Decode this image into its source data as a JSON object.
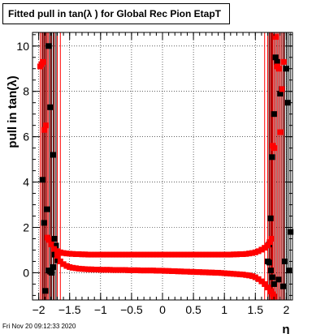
{
  "title": "Fitted pull in tan(λ ) for Global Rec Pion EtapT",
  "timestamp": "Fri Nov 20 09:12:33 2020",
  "colors": {
    "series_a": "#000000",
    "series_b": "#ff0000",
    "grid": "#000000"
  },
  "chart_data": {
    "type": "scatter",
    "title": "Fitted pull in tan(λ ) for Global Rec Pion EtapT",
    "xlabel": "η",
    "ylabel": "pull in tan(λ)",
    "xlim": [
      -2.1,
      2.1
    ],
    "ylim": [
      -1.2,
      10.6
    ],
    "x_ticks": [
      -2,
      -1.5,
      -1,
      -0.5,
      0,
      0.5,
      1,
      1.5,
      2
    ],
    "x_tick_labels": [
      "−2",
      "−1.5",
      "−1",
      "−0.5",
      "0",
      "0.5",
      "1",
      "1.5",
      "2"
    ],
    "y_ticks": [
      0,
      2,
      4,
      6,
      8,
      10
    ],
    "y_tick_labels": [
      "0",
      "2",
      "4",
      "6",
      "8",
      "10"
    ],
    "grid": true,
    "series": [
      {
        "marker": "square",
        "mean": [
          [
            -1.94,
            4.1
          ],
          [
            -1.915,
            2.2
          ],
          [
            -1.89,
            -0.8
          ],
          [
            -1.865,
            2.8
          ],
          [
            -1.84,
            10.0
          ],
          [
            -1.815,
            7.3
          ],
          [
            -1.79,
            0.1
          ],
          [
            -1.765,
            5.2
          ],
          [
            -1.745,
            1.5
          ],
          [
            -1.72,
            1.2
          ],
          [
            1.72,
            1.25
          ],
          [
            1.745,
            2.4
          ],
          [
            1.77,
            5.1
          ],
          [
            1.8,
            7.0
          ],
          [
            1.825,
            9.5
          ],
          [
            1.85,
            9.3
          ],
          [
            1.875,
            -0.3
          ],
          [
            1.9,
            7.9
          ],
          [
            1.925,
            8.1
          ],
          [
            1.95,
            -0.6
          ],
          [
            1.975,
            0.5
          ],
          [
            2.0,
            9.0
          ],
          [
            2.02,
            7.5
          ],
          [
            2.045,
            0.1
          ],
          [
            2.07,
            1.8
          ]
        ],
        "zero": [
          [
            -1.84,
            0.1
          ],
          [
            -1.815,
            0.05
          ],
          [
            -1.79,
            0.0
          ],
          [
            -1.765,
            0.25
          ],
          [
            -1.745,
            0.8
          ],
          [
            -1.72,
            0.9
          ],
          [
            -1.7,
            0.55
          ],
          [
            1.7,
            0.5
          ],
          [
            1.725,
            0.45
          ],
          [
            1.75,
            0.1
          ],
          [
            1.775,
            -0.2
          ],
          [
            1.8,
            -0.5
          ]
        ]
      },
      {
        "marker": "square",
        "mean": [
          [
            -1.975,
            9.1
          ],
          [
            -1.955,
            9.2
          ],
          [
            -1.93,
            9.3
          ],
          [
            -1.905,
            6.3
          ],
          [
            -1.88,
            6.5
          ],
          [
            -1.86,
            1.55
          ],
          [
            -1.84,
            1.45
          ],
          [
            -1.8,
            1.25
          ],
          [
            -1.75,
            1.05
          ],
          [
            -1.7,
            0.95
          ],
          [
            -1.65,
            0.9
          ],
          [
            -1.6,
            0.87
          ],
          [
            -1.55,
            0.85
          ],
          [
            -1.5,
            0.84
          ],
          [
            -1.45,
            0.83
          ],
          [
            -1.4,
            0.82
          ],
          [
            -1.35,
            0.82
          ],
          [
            -1.3,
            0.81
          ],
          [
            -1.25,
            0.81
          ],
          [
            -1.2,
            0.8
          ],
          [
            -1.15,
            0.8
          ],
          [
            -1.1,
            0.8
          ],
          [
            -1.05,
            0.8
          ],
          [
            -1.0,
            0.8
          ],
          [
            -0.95,
            0.8
          ],
          [
            -0.9,
            0.8
          ],
          [
            -0.85,
            0.8
          ],
          [
            -0.8,
            0.8
          ],
          [
            -0.75,
            0.8
          ],
          [
            -0.7,
            0.8
          ],
          [
            -0.65,
            0.8
          ],
          [
            -0.6,
            0.8
          ],
          [
            -0.55,
            0.8
          ],
          [
            -0.5,
            0.8
          ],
          [
            -0.45,
            0.8
          ],
          [
            -0.4,
            0.8
          ],
          [
            -0.35,
            0.8
          ],
          [
            -0.3,
            0.8
          ],
          [
            -0.25,
            0.8
          ],
          [
            -0.2,
            0.8
          ],
          [
            -0.15,
            0.8
          ],
          [
            -0.1,
            0.8
          ],
          [
            -0.05,
            0.8
          ],
          [
            0.0,
            0.8
          ],
          [
            0.05,
            0.8
          ],
          [
            0.1,
            0.8
          ],
          [
            0.15,
            0.8
          ],
          [
            0.2,
            0.8
          ],
          [
            0.25,
            0.8
          ],
          [
            0.3,
            0.8
          ],
          [
            0.35,
            0.8
          ],
          [
            0.4,
            0.8
          ],
          [
            0.45,
            0.8
          ],
          [
            0.5,
            0.8
          ],
          [
            0.55,
            0.8
          ],
          [
            0.6,
            0.8
          ],
          [
            0.65,
            0.8
          ],
          [
            0.7,
            0.8
          ],
          [
            0.75,
            0.8
          ],
          [
            0.8,
            0.8
          ],
          [
            0.85,
            0.8
          ],
          [
            0.9,
            0.8
          ],
          [
            0.95,
            0.8
          ],
          [
            1.0,
            0.8
          ],
          [
            1.05,
            0.8
          ],
          [
            1.1,
            0.8
          ],
          [
            1.15,
            0.81
          ],
          [
            1.2,
            0.81
          ],
          [
            1.25,
            0.82
          ],
          [
            1.3,
            0.82
          ],
          [
            1.35,
            0.83
          ],
          [
            1.4,
            0.85
          ],
          [
            1.45,
            0.87
          ],
          [
            1.5,
            0.9
          ],
          [
            1.55,
            0.95
          ],
          [
            1.6,
            1.02
          ],
          [
            1.65,
            1.1
          ],
          [
            1.7,
            1.2
          ],
          [
            1.73,
            1.35
          ],
          [
            1.76,
            1.5
          ],
          [
            1.78,
            5.6
          ],
          [
            1.805,
            5.5
          ],
          [
            1.83,
            10.4
          ],
          [
            1.855,
            9.1
          ],
          [
            1.88,
            9.0
          ],
          [
            1.905,
            6.2
          ],
          [
            1.93,
            8.1
          ],
          [
            1.96,
            9.3
          ]
        ],
        "zero": [
          [
            -1.7,
            0.75
          ],
          [
            -1.65,
            0.5
          ],
          [
            -1.6,
            0.38
          ],
          [
            -1.55,
            0.3
          ],
          [
            -1.5,
            0.25
          ],
          [
            -1.45,
            0.22
          ],
          [
            -1.4,
            0.2
          ],
          [
            -1.35,
            0.18
          ],
          [
            -1.3,
            0.17
          ],
          [
            -1.25,
            0.16
          ],
          [
            -1.2,
            0.15
          ],
          [
            -1.15,
            0.15
          ],
          [
            -1.1,
            0.14
          ],
          [
            -1.05,
            0.14
          ],
          [
            -1.0,
            0.13
          ],
          [
            -0.95,
            0.13
          ],
          [
            -0.9,
            0.13
          ],
          [
            -0.85,
            0.13
          ],
          [
            -0.8,
            0.12
          ],
          [
            -0.75,
            0.12
          ],
          [
            -0.7,
            0.12
          ],
          [
            -0.65,
            0.12
          ],
          [
            -0.6,
            0.12
          ],
          [
            -0.55,
            0.11
          ],
          [
            -0.5,
            0.11
          ],
          [
            -0.45,
            0.11
          ],
          [
            -0.4,
            0.11
          ],
          [
            -0.35,
            0.1
          ],
          [
            -0.3,
            0.1
          ],
          [
            -0.25,
            0.1
          ],
          [
            -0.2,
            0.1
          ],
          [
            -0.15,
            0.1
          ],
          [
            -0.1,
            0.09
          ],
          [
            -0.05,
            0.09
          ],
          [
            0.0,
            0.09
          ],
          [
            0.05,
            0.08
          ],
          [
            0.1,
            0.08
          ],
          [
            0.15,
            0.07
          ],
          [
            0.2,
            0.07
          ],
          [
            0.25,
            0.06
          ],
          [
            0.3,
            0.06
          ],
          [
            0.35,
            0.05
          ],
          [
            0.4,
            0.05
          ],
          [
            0.45,
            0.04
          ],
          [
            0.5,
            0.04
          ],
          [
            0.55,
            0.03
          ],
          [
            0.6,
            0.03
          ],
          [
            0.65,
            0.02
          ],
          [
            0.7,
            0.02
          ],
          [
            0.75,
            0.01
          ],
          [
            0.8,
            0.01
          ],
          [
            0.85,
            0.0
          ],
          [
            0.9,
            0.0
          ],
          [
            0.95,
            -0.01
          ],
          [
            1.0,
            -0.02
          ],
          [
            1.05,
            -0.03
          ],
          [
            1.1,
            -0.04
          ],
          [
            1.15,
            -0.05
          ],
          [
            1.2,
            -0.06
          ],
          [
            1.25,
            -0.07
          ],
          [
            1.3,
            -0.08
          ],
          [
            1.35,
            -0.1
          ],
          [
            1.4,
            -0.12
          ],
          [
            1.45,
            -0.15
          ],
          [
            1.5,
            -0.2
          ],
          [
            1.55,
            -0.28
          ],
          [
            1.6,
            -0.38
          ],
          [
            1.65,
            -0.5
          ],
          [
            1.7,
            -0.65
          ],
          [
            1.75,
            -0.82
          ],
          [
            1.78,
            -0.95
          ],
          [
            1.8,
            -1.05
          ]
        ]
      }
    ]
  }
}
